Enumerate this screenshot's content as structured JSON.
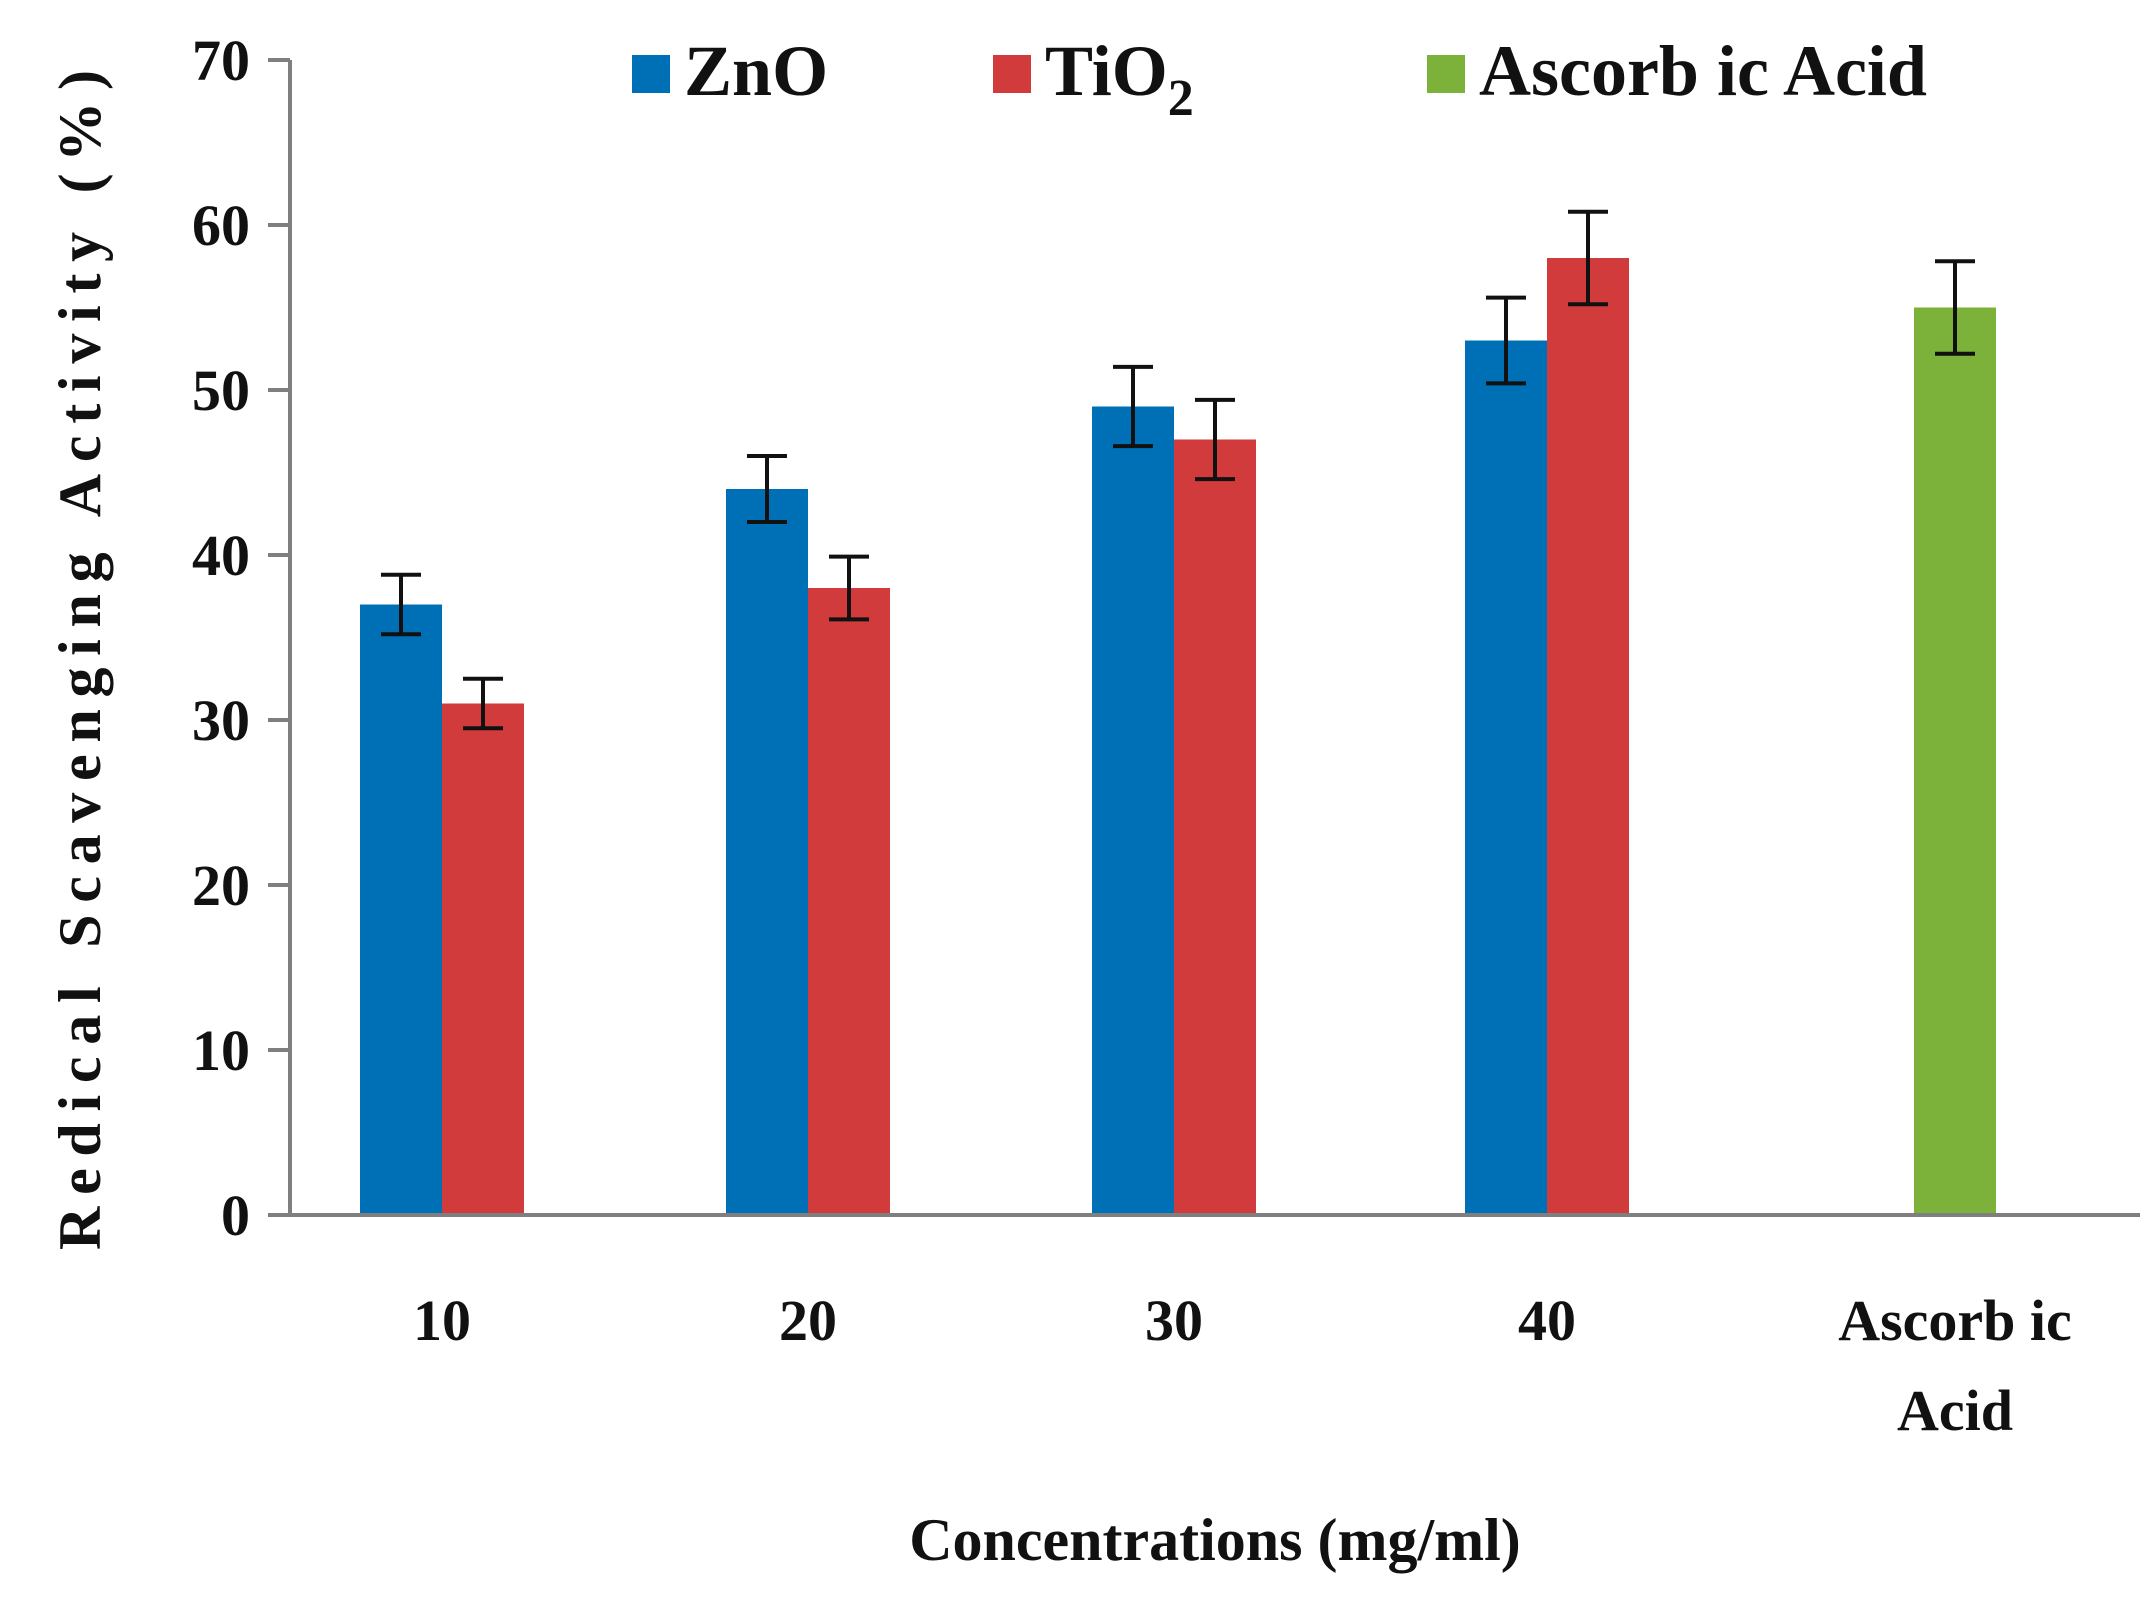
{
  "chart_data": {
    "type": "bar",
    "title": "",
    "xlabel": "Concentrations  (mg/ml)",
    "ylabel": "Redical Scavenging Activity (%)",
    "ylim": [
      0,
      70
    ],
    "yticks": [
      "0",
      "10",
      "20",
      "30",
      "40",
      "50",
      "60",
      "70"
    ],
    "categories": [
      "10",
      "20",
      "30",
      "40",
      "Ascorbic Acid"
    ],
    "category_lines": [
      [
        "10"
      ],
      [
        "20"
      ],
      [
        "30"
      ],
      [
        "40"
      ],
      [
        "Ascorb ic",
        "Acid"
      ]
    ],
    "legend_position": "top",
    "series": [
      {
        "name": "ZnO",
        "name_main": "ZnO",
        "name_sub": "",
        "color": "#0070b6",
        "values": [
          37,
          44,
          49,
          53,
          null
        ],
        "errors": [
          1.8,
          2.0,
          2.4,
          2.6,
          null
        ]
      },
      {
        "name": "TiO2",
        "name_main": "TiO",
        "name_sub": "2",
        "color": "#d13b3b",
        "values": [
          31,
          38,
          47,
          58,
          null
        ],
        "errors": [
          1.5,
          1.9,
          2.4,
          2.8,
          null
        ]
      },
      {
        "name": "Ascorbic Acid",
        "name_main": "Ascorb ic Acid",
        "name_sub": "",
        "color": "#7cb13a",
        "values": [
          null,
          null,
          null,
          null,
          55
        ],
        "errors": [
          null,
          null,
          null,
          null,
          2.8
        ]
      }
    ]
  }
}
